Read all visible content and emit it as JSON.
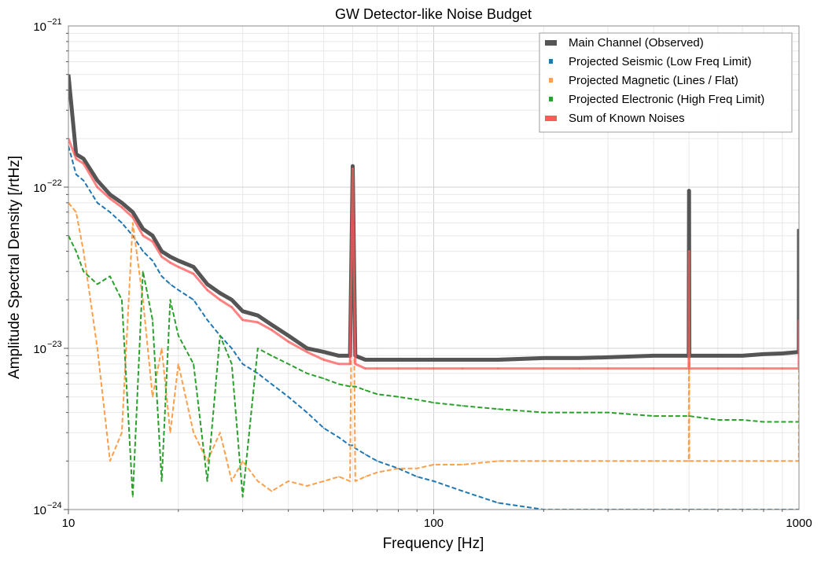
{
  "chart_data": {
    "type": "line",
    "title": "GW Detector-like Noise Budget",
    "xlabel": "Frequency [Hz]",
    "ylabel": "Amplitude Spectral Density [/rtHz]",
    "xscale": "log",
    "yscale": "log",
    "xlim": [
      10,
      1000
    ],
    "ylim": [
      1e-24,
      1e-21
    ],
    "grid": true,
    "legend_placement": "top-right",
    "x_ticks": [
      {
        "value": 10,
        "label": "10"
      },
      {
        "value": 100,
        "label": "100"
      },
      {
        "value": 1000,
        "label": "1000"
      }
    ],
    "y_ticks": [
      {
        "value": 1e-24,
        "base": "10",
        "exp": "−24"
      },
      {
        "value": 1e-23,
        "base": "10",
        "exp": "−23"
      },
      {
        "value": 1e-22,
        "base": "10",
        "exp": "−22"
      },
      {
        "value": 1e-21,
        "base": "10",
        "exp": "−21"
      }
    ],
    "x": [
      10,
      10.5,
      11,
      12,
      13,
      14,
      15,
      16,
      17,
      18,
      19,
      20,
      22,
      24,
      26,
      28,
      30,
      33,
      36,
      40,
      45,
      50,
      55,
      59,
      60,
      61,
      65,
      70,
      80,
      90,
      100,
      120,
      150,
      200,
      250,
      300,
      400,
      499,
      500,
      501,
      600,
      700,
      800,
      900,
      999,
      1000
    ],
    "series": [
      {
        "name": "Main Channel (Observed)",
        "color": "#555555",
        "style": "solid",
        "width": 5,
        "values": [
          5e-22,
          1.6e-22,
          1.5e-22,
          1.1e-22,
          9e-23,
          8e-23,
          7e-23,
          5.5e-23,
          5e-23,
          4e-23,
          3.7e-23,
          3.5e-23,
          3.2e-23,
          2.5e-23,
          2.2e-23,
          2e-23,
          1.7e-23,
          1.6e-23,
          1.4e-23,
          1.2e-23,
          1e-23,
          9.5e-24,
          9e-24,
          9e-24,
          1.35e-22,
          9e-24,
          8.5e-24,
          8.5e-24,
          8.5e-24,
          8.5e-24,
          8.5e-24,
          8.5e-24,
          8.5e-24,
          8.7e-24,
          8.7e-24,
          8.8e-24,
          9e-24,
          9e-24,
          9.5e-23,
          9e-24,
          9e-24,
          9e-24,
          9.2e-24,
          9.3e-24,
          9.5e-24,
          5.5e-23
        ]
      },
      {
        "name": "Projected Seismic (Low Freq Limit)",
        "color": "#1f77b4",
        "style": "dashed",
        "width": 2,
        "values": [
          1.8e-22,
          1.2e-22,
          1.1e-22,
          8e-23,
          7e-23,
          6e-23,
          5e-23,
          4e-23,
          3.5e-23,
          2.8e-23,
          2.5e-23,
          2.3e-23,
          2e-23,
          1.5e-23,
          1.2e-23,
          1e-23,
          8e-24,
          7e-24,
          6e-24,
          5e-24,
          4e-24,
          3.2e-24,
          2.8e-24,
          2.5e-24,
          2.5e-24,
          2.4e-24,
          2.2e-24,
          2e-24,
          1.8e-24,
          1.6e-24,
          1.5e-24,
          1.3e-24,
          1.1e-24,
          1e-24,
          1e-24,
          1e-24,
          1e-24,
          1e-24,
          1e-24,
          1e-24,
          1e-24,
          1e-24,
          1e-24,
          1e-24,
          1e-24,
          1e-24
        ]
      },
      {
        "name": "Projected Magnetic (Lines / Flat)",
        "color": "#ff9f4a",
        "style": "dashed",
        "width": 2,
        "values": [
          8e-23,
          7e-23,
          4e-23,
          1e-23,
          2e-24,
          3e-24,
          6e-23,
          2e-23,
          5e-24,
          1e-23,
          3e-24,
          8e-24,
          3e-24,
          2e-24,
          3e-24,
          1.5e-24,
          2e-24,
          1.5e-24,
          1.3e-24,
          1.5e-24,
          1.4e-24,
          1.5e-24,
          1.6e-24,
          1.5e-24,
          1.2e-22,
          1.5e-24,
          1.6e-24,
          1.7e-24,
          1.8e-24,
          1.8e-24,
          1.9e-24,
          1.9e-24,
          2e-24,
          2e-24,
          2e-24,
          2e-24,
          2e-24,
          2e-24,
          4e-23,
          2e-24,
          2e-24,
          2e-24,
          2e-24,
          2e-24,
          2e-24,
          1.5e-23
        ]
      },
      {
        "name": "Projected Electronic (High Freq Limit)",
        "color": "#2ca02c",
        "style": "dashed",
        "width": 2,
        "values": [
          5e-23,
          4e-23,
          3e-23,
          2.5e-23,
          2.8e-23,
          2e-23,
          1.2e-24,
          3e-23,
          1.5e-23,
          1.5e-24,
          2e-23,
          1.2e-23,
          8e-24,
          1.5e-24,
          1.2e-23,
          8e-24,
          1.2e-24,
          1e-23,
          9e-24,
          8e-24,
          7e-24,
          6.5e-24,
          6e-24,
          5.8e-24,
          5.8e-24,
          5.8e-24,
          5.5e-24,
          5.2e-24,
          5e-24,
          4.8e-24,
          4.6e-24,
          4.4e-24,
          4.2e-24,
          4e-24,
          4e-24,
          4e-24,
          3.8e-24,
          3.8e-24,
          3.8e-24,
          3.8e-24,
          3.6e-24,
          3.6e-24,
          3.5e-24,
          3.5e-24,
          3.5e-24,
          3.5e-24
        ]
      },
      {
        "name": "Sum of Known Noises",
        "color": "#ff5a5a",
        "style": "solid",
        "width": 3,
        "values": [
          2e-22,
          1.5e-22,
          1.4e-22,
          1e-22,
          8.5e-23,
          7.5e-23,
          6.5e-23,
          5e-23,
          4.6e-23,
          3.7e-23,
          3.4e-23,
          3.2e-23,
          2.9e-23,
          2.3e-23,
          2e-23,
          1.8e-23,
          1.5e-23,
          1.45e-23,
          1.3e-23,
          1.1e-23,
          9.5e-24,
          8.5e-24,
          8e-24,
          8e-24,
          1.3e-22,
          8e-24,
          7.5e-24,
          7.5e-24,
          7.5e-24,
          7.5e-24,
          7.5e-24,
          7.5e-24,
          7.5e-24,
          7.5e-24,
          7.5e-24,
          7.5e-24,
          7.5e-24,
          7.5e-24,
          4e-23,
          7.5e-24,
          7.5e-24,
          7.5e-24,
          7.5e-24,
          7.5e-24,
          7.5e-24,
          1.5e-23
        ]
      }
    ]
  }
}
